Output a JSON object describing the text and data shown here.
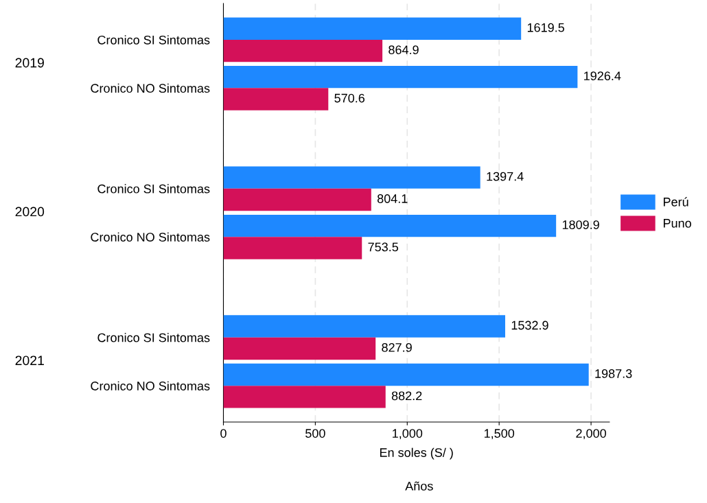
{
  "chart_data": {
    "type": "bar",
    "orientation": "horizontal",
    "xlabel": "En soles (S/ )",
    "categories": [
      "Cronico SI Sintomas",
      "Cronico NO Sintomas",
      "Cronico SI Sintomas",
      "Cronico NO Sintomas",
      "Cronico SI Sintomas",
      "Cronico NO Sintomas"
    ],
    "annotations": [
      "2019",
      "2020",
      "2021",
      "Años"
    ],
    "series": [
      {
        "name": "Perú",
        "color": "#1e88ff",
        "values": [
          1619.5,
          1926.4,
          1397.4,
          1809.9,
          1532.9,
          1987.3
        ]
      },
      {
        "name": "Puno",
        "color": "#d41159",
        "values": [
          864.9,
          570.6,
          804.1,
          753.5,
          827.9,
          882.2
        ]
      }
    ],
    "xlim": [
      0,
      2100
    ],
    "xticks": [
      0,
      500,
      {
        "value": 1000,
        "label": "1,000"
      },
      {
        "value": 1500,
        "label": "1,500"
      },
      {
        "value": 2000,
        "label": "2,000"
      }
    ],
    "grid": "x",
    "legend": "right",
    "data_labels": true
  }
}
